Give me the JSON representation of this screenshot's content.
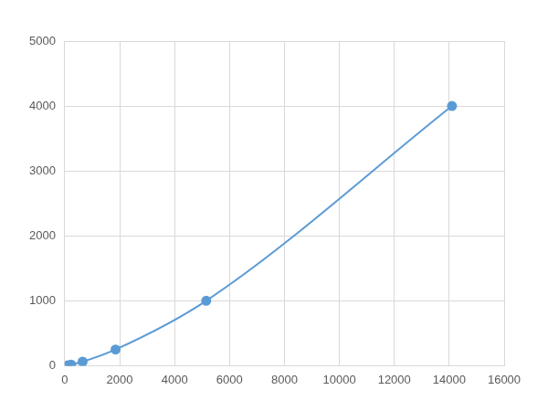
{
  "chart_data": {
    "type": "scatter",
    "x": [
      110,
      230,
      650,
      1850,
      5150,
      14100
    ],
    "values": [
      4,
      16,
      62,
      250,
      1000,
      4000
    ],
    "color": "#5b9bd5",
    "marker": "circle",
    "line_style": "smooth",
    "xlim": [
      0,
      16000
    ],
    "xticks": [
      0,
      2000,
      4000,
      6000,
      8000,
      10000,
      12000,
      14000,
      16000
    ],
    "ylim": [
      0,
      5000
    ],
    "yticks": [
      0,
      1000,
      2000,
      3000,
      4000,
      5000
    ],
    "grid": true
  }
}
